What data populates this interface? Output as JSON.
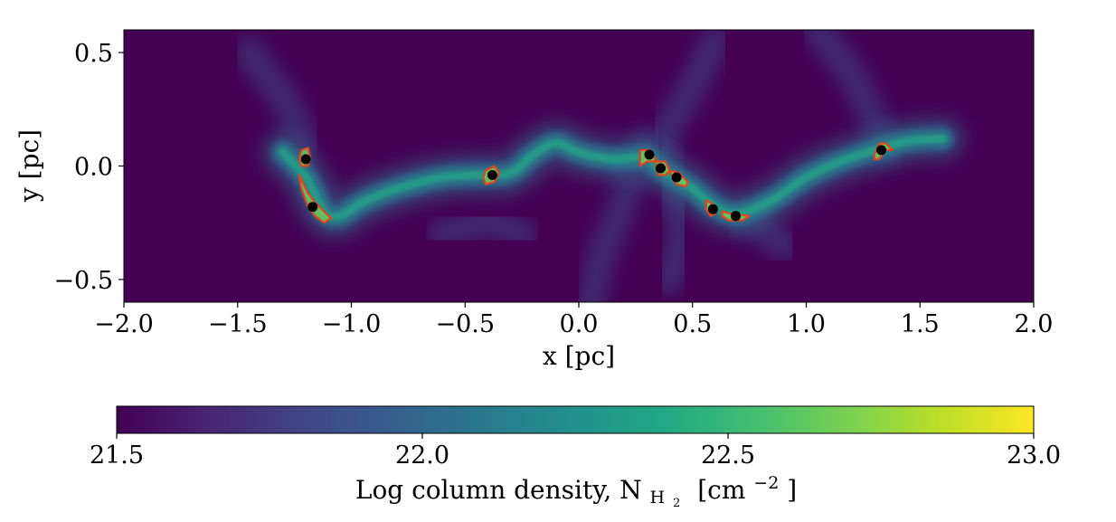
{
  "chart_data": {
    "type": "heatmap",
    "xlabel": "x [pc]",
    "ylabel": "y [pc]",
    "xlim": [
      -2.0,
      2.0
    ],
    "ylim": [
      -0.6,
      0.6
    ],
    "x_ticks": [
      -2.0,
      -1.5,
      -1.0,
      -0.5,
      0.0,
      0.5,
      1.0,
      1.5,
      2.0
    ],
    "x_tick_labels": [
      "−2.0",
      "−1.5",
      "−1.0",
      "−0.5",
      "0.0",
      "0.5",
      "1.0",
      "1.5",
      "2.0"
    ],
    "y_ticks": [
      0.5,
      0.0,
      -0.5
    ],
    "y_tick_labels": [
      "0.5",
      "0.0",
      "−0.5"
    ],
    "grid": false,
    "colormap": "viridis",
    "colorbar": {
      "orientation": "horizontal",
      "range": [
        21.5,
        23.0
      ],
      "ticks": [
        21.5,
        22.0,
        22.5,
        23.0
      ],
      "tick_labels": [
        "21.5",
        "22.0",
        "22.5",
        "23.0"
      ],
      "label_text": "Log column density, N",
      "label_subscript_main": "H",
      "label_subscript_sub": "2",
      "label_units_open": "[cm",
      "label_units_exp": "−2",
      "label_units_close": "]"
    },
    "filament_spine": [
      [
        -1.3,
        0.06
      ],
      [
        -1.2,
        -0.05
      ],
      [
        -1.12,
        -0.2
      ],
      [
        -1.05,
        -0.22
      ],
      [
        -0.95,
        -0.16
      ],
      [
        -0.8,
        -0.1
      ],
      [
        -0.6,
        -0.05
      ],
      [
        -0.45,
        -0.04
      ],
      [
        -0.3,
        -0.03
      ],
      [
        -0.2,
        0.05
      ],
      [
        -0.1,
        0.1
      ],
      [
        0.0,
        0.06
      ],
      [
        0.15,
        0.03
      ],
      [
        0.3,
        0.04
      ],
      [
        0.35,
        -0.01
      ],
      [
        0.42,
        -0.05
      ],
      [
        0.5,
        -0.1
      ],
      [
        0.6,
        -0.18
      ],
      [
        0.7,
        -0.21
      ],
      [
        0.85,
        -0.15
      ],
      [
        1.0,
        -0.05
      ],
      [
        1.15,
        0.02
      ],
      [
        1.3,
        0.07
      ],
      [
        1.45,
        0.11
      ],
      [
        1.6,
        0.12
      ]
    ],
    "faint_streams": [
      [
        [
          0.05,
          -0.6
        ],
        [
          0.1,
          -0.4
        ],
        [
          0.18,
          -0.2
        ],
        [
          0.25,
          0.0
        ],
        [
          0.3,
          0.1
        ]
      ],
      [
        [
          0.4,
          -0.5
        ],
        [
          0.45,
          -0.3
        ],
        [
          0.4,
          -0.1
        ],
        [
          0.38,
          0.05
        ]
      ],
      [
        [
          -1.45,
          0.5
        ],
        [
          -1.3,
          0.3
        ],
        [
          -1.2,
          0.1
        ]
      ],
      [
        [
          1.05,
          0.6
        ],
        [
          1.2,
          0.4
        ],
        [
          1.3,
          0.2
        ],
        [
          1.35,
          0.08
        ]
      ],
      [
        [
          -0.6,
          -0.3
        ],
        [
          -0.4,
          -0.25
        ],
        [
          -0.25,
          -0.3
        ]
      ],
      [
        [
          0.6,
          0.55
        ],
        [
          0.5,
          0.35
        ],
        [
          0.38,
          0.15
        ]
      ],
      [
        [
          0.9,
          -0.35
        ],
        [
          0.8,
          -0.28
        ],
        [
          0.7,
          -0.22
        ]
      ]
    ],
    "cores": [
      {
        "x": -1.2,
        "y": 0.03
      },
      {
        "x": -1.17,
        "y": -0.18
      },
      {
        "x": -0.38,
        "y": -0.04
      },
      {
        "x": 0.31,
        "y": 0.05
      },
      {
        "x": 0.36,
        "y": -0.01
      },
      {
        "x": 0.43,
        "y": -0.05
      },
      {
        "x": 0.59,
        "y": -0.19
      },
      {
        "x": 0.69,
        "y": -0.22
      },
      {
        "x": 1.33,
        "y": 0.07
      }
    ],
    "core_contours": [
      [
        [
          -1.22,
          0.07
        ],
        [
          -1.19,
          0.08
        ],
        [
          -1.18,
          0.03
        ],
        [
          -1.19,
          0.0
        ],
        [
          -1.22,
          0.0
        ],
        [
          -1.23,
          0.03
        ]
      ],
      [
        [
          -1.23,
          -0.04
        ],
        [
          -1.19,
          -0.12
        ],
        [
          -1.16,
          -0.16
        ],
        [
          -1.12,
          -0.2
        ],
        [
          -1.09,
          -0.23
        ],
        [
          -1.12,
          -0.25
        ],
        [
          -1.16,
          -0.22
        ],
        [
          -1.19,
          -0.18
        ],
        [
          -1.22,
          -0.1
        ]
      ],
      [
        [
          -0.41,
          -0.02
        ],
        [
          -0.37,
          0.0
        ],
        [
          -0.35,
          -0.03
        ],
        [
          -0.37,
          -0.07
        ],
        [
          -0.41,
          -0.08
        ],
        [
          -0.42,
          -0.05
        ]
      ],
      [
        [
          0.27,
          0.07
        ],
        [
          0.31,
          0.07
        ],
        [
          0.34,
          0.03
        ],
        [
          0.33,
          0.02
        ],
        [
          0.3,
          0.02
        ],
        [
          0.27,
          0.0
        ]
      ],
      [
        [
          0.34,
          0.02
        ],
        [
          0.38,
          0.02
        ],
        [
          0.4,
          -0.02
        ],
        [
          0.38,
          -0.04
        ],
        [
          0.35,
          -0.04
        ],
        [
          0.34,
          -0.01
        ]
      ],
      [
        [
          0.4,
          -0.02
        ],
        [
          0.44,
          -0.03
        ],
        [
          0.48,
          -0.07
        ],
        [
          0.47,
          -0.09
        ],
        [
          0.43,
          -0.08
        ],
        [
          0.41,
          -0.05
        ]
      ],
      [
        [
          0.56,
          -0.15
        ],
        [
          0.59,
          -0.17
        ],
        [
          0.6,
          -0.21
        ],
        [
          0.58,
          -0.22
        ],
        [
          0.56,
          -0.19
        ]
      ],
      [
        [
          0.63,
          -0.2
        ],
        [
          0.67,
          -0.21
        ],
        [
          0.75,
          -0.22
        ],
        [
          0.72,
          -0.24
        ],
        [
          0.66,
          -0.24
        ],
        [
          0.63,
          -0.22
        ]
      ],
      [
        [
          1.3,
          0.05
        ],
        [
          1.32,
          0.1
        ],
        [
          1.35,
          0.1
        ],
        [
          1.38,
          0.07
        ],
        [
          1.35,
          0.07
        ],
        [
          1.32,
          0.03
        ],
        [
          1.3,
          0.03
        ]
      ]
    ]
  }
}
